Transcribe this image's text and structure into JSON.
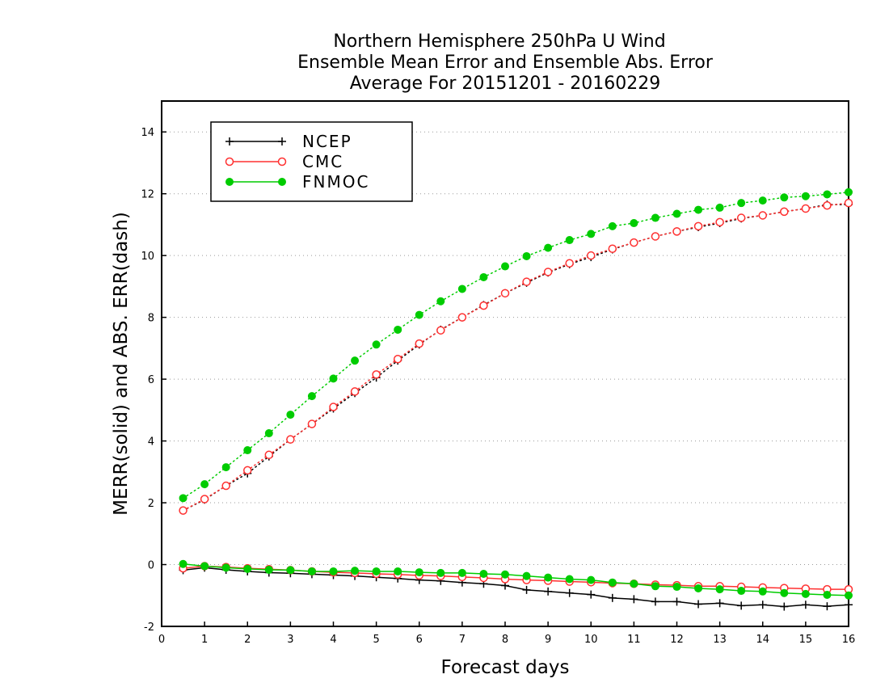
{
  "chart_data": {
    "type": "line",
    "title": [
      "Northern Hemisphere 250hPa U Wind",
      "Ensemble Mean Error and Ensemble Abs. Error",
      "Average For 20151201 - 20160229"
    ],
    "xlabel": "Forecast days",
    "ylabel": "MERR(solid) and ABS. ERR(dash)",
    "xlim": [
      0,
      16
    ],
    "ylim": [
      -2,
      15
    ],
    "xticks": [
      "0",
      "1",
      "2",
      "3",
      "4",
      "5",
      "6",
      "7",
      "8",
      "9",
      "10",
      "11",
      "12",
      "13",
      "14",
      "15",
      "16"
    ],
    "yticks": [
      "-2",
      "0",
      "2",
      "4",
      "6",
      "8",
      "10",
      "12",
      "14"
    ],
    "grid": "horizontal dotted",
    "legend_position": "top-left",
    "x": [
      0.5,
      1,
      1.5,
      2,
      2.5,
      3,
      3.5,
      4,
      4.5,
      5,
      5.5,
      6,
      6.5,
      7,
      7.5,
      8,
      8.5,
      9,
      9.5,
      10,
      10.5,
      11,
      11.5,
      12,
      12.5,
      13,
      13.5,
      14,
      14.5,
      15,
      15.5,
      16
    ],
    "series": [
      {
        "name": "NCEP",
        "color": "#000000",
        "marker": "plus",
        "mean_error": [
          -0.18,
          -0.1,
          -0.17,
          -0.22,
          -0.26,
          -0.28,
          -0.31,
          -0.34,
          -0.37,
          -0.41,
          -0.45,
          -0.5,
          -0.53,
          -0.58,
          -0.62,
          -0.68,
          -0.82,
          -0.87,
          -0.92,
          -0.97,
          -1.08,
          -1.12,
          -1.2,
          -1.2,
          -1.28,
          -1.25,
          -1.33,
          -1.3,
          -1.36,
          -1.3,
          -1.35,
          -1.3
        ],
        "abs_error": [
          1.75,
          2.1,
          2.55,
          2.95,
          3.5,
          4.05,
          4.55,
          5.05,
          5.55,
          6.05,
          6.6,
          7.12,
          7.6,
          8.0,
          8.4,
          8.78,
          9.12,
          9.45,
          9.72,
          9.95,
          10.2,
          10.42,
          10.62,
          10.78,
          10.92,
          11.05,
          11.2,
          11.3,
          11.42,
          11.52,
          11.65,
          11.65
        ]
      },
      {
        "name": "CMC",
        "color": "#ff3030",
        "marker": "open-circle",
        "mean_error": [
          -0.12,
          -0.05,
          -0.08,
          -0.12,
          -0.15,
          -0.18,
          -0.22,
          -0.25,
          -0.27,
          -0.3,
          -0.32,
          -0.35,
          -0.37,
          -0.4,
          -0.43,
          -0.47,
          -0.5,
          -0.52,
          -0.55,
          -0.57,
          -0.6,
          -0.62,
          -0.65,
          -0.67,
          -0.7,
          -0.7,
          -0.72,
          -0.74,
          -0.76,
          -0.78,
          -0.8,
          -0.8
        ],
        "abs_error": [
          1.75,
          2.12,
          2.55,
          3.05,
          3.55,
          4.05,
          4.55,
          5.1,
          5.6,
          6.15,
          6.65,
          7.15,
          7.58,
          8.0,
          8.38,
          8.78,
          9.15,
          9.47,
          9.75,
          10.0,
          10.22,
          10.42,
          10.62,
          10.78,
          10.95,
          11.08,
          11.22,
          11.3,
          11.42,
          11.52,
          11.62,
          11.7
        ]
      },
      {
        "name": "FNMOC",
        "color": "#00cc00",
        "marker": "filled-circle",
        "mean_error": [
          0.02,
          -0.05,
          -0.1,
          -0.14,
          -0.17,
          -0.18,
          -0.22,
          -0.22,
          -0.2,
          -0.22,
          -0.22,
          -0.25,
          -0.27,
          -0.27,
          -0.3,
          -0.32,
          -0.37,
          -0.42,
          -0.47,
          -0.5,
          -0.58,
          -0.62,
          -0.7,
          -0.72,
          -0.77,
          -0.8,
          -0.85,
          -0.87,
          -0.92,
          -0.95,
          -0.98,
          -1.0
        ],
        "abs_error": [
          2.15,
          2.6,
          3.15,
          3.7,
          4.25,
          4.85,
          5.45,
          6.02,
          6.6,
          7.12,
          7.6,
          8.08,
          8.52,
          8.92,
          9.3,
          9.65,
          9.98,
          10.25,
          10.5,
          10.7,
          10.95,
          11.05,
          11.22,
          11.35,
          11.48,
          11.55,
          11.7,
          11.78,
          11.88,
          11.92,
          11.98,
          12.05
        ]
      }
    ]
  }
}
